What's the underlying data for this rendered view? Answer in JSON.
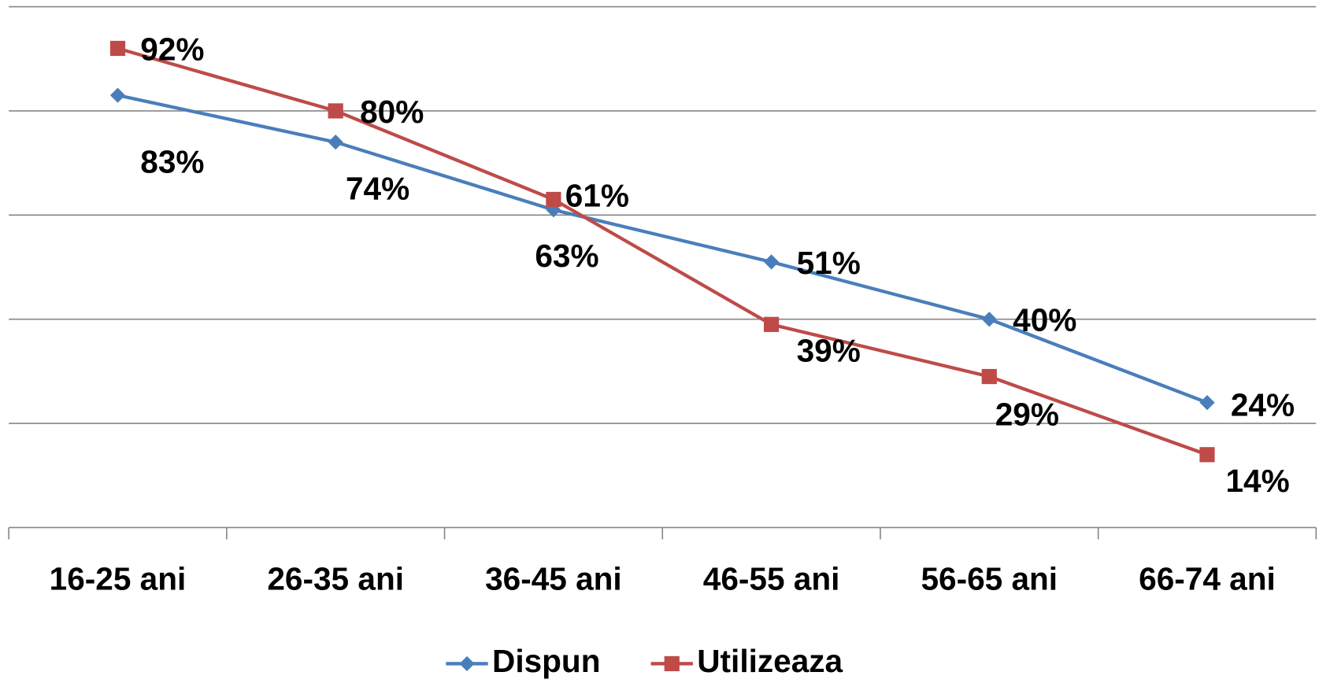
{
  "chart_data": {
    "type": "line",
    "categories": [
      "16-25 ani",
      "26-35 ani",
      "36-45 ani",
      "46-55 ani",
      "56-65 ani",
      "66-74 ani"
    ],
    "series": [
      {
        "name": "Dispun",
        "color": "#4a7ebb",
        "marker": "diamond",
        "values": [
          83,
          74,
          61,
          51,
          40,
          24
        ],
        "value_labels": [
          "83%",
          "74%",
          "61%",
          "51%",
          "40%",
          "24%"
        ]
      },
      {
        "name": "Utilizeaza",
        "color": "#be4b48",
        "marker": "square",
        "values": [
          92,
          80,
          63,
          39,
          29,
          14
        ],
        "value_labels": [
          "92%",
          "80%",
          "63%",
          "39%",
          "29%",
          "14%"
        ]
      }
    ],
    "ylim": [
      0,
      100
    ],
    "yticks": [
      0,
      20,
      40,
      60,
      80,
      100
    ],
    "grid": true,
    "legend": "bottom"
  }
}
